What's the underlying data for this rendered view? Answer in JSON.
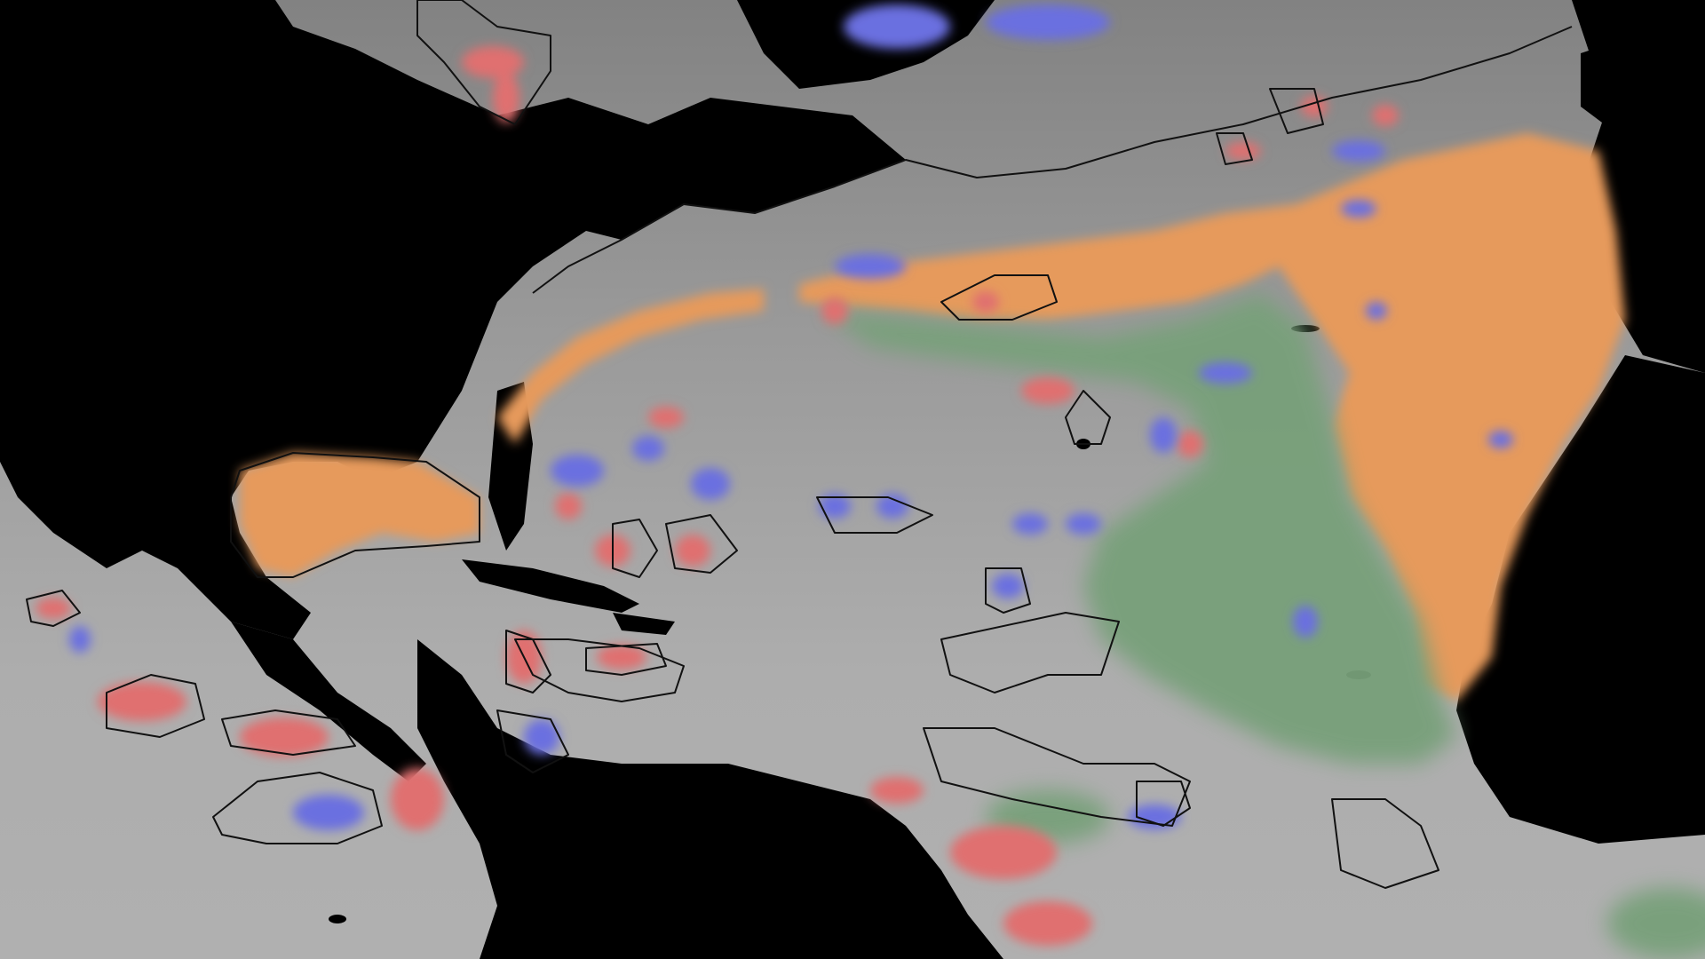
{
  "map": {
    "colors": {
      "land": "#000000",
      "ocean": "#a8a8a8",
      "ocean_north": "#8a8a8a",
      "coastline": "#1a1a1a",
      "contour": "#111111",
      "warm_region": "#e69a5c",
      "mid_region": "#78a07a",
      "red_anomaly": "#e07070",
      "blue_anomaly": "#6b70e0"
    },
    "layers": [
      "ocean-background",
      "landmasses",
      "orange-band",
      "green-band",
      "red-eddies",
      "blue-eddies",
      "contours"
    ]
  }
}
